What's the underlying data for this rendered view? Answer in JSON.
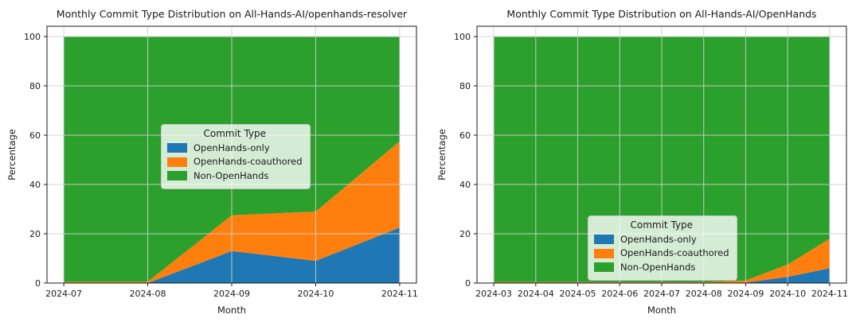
{
  "figure": {
    "background": "#ffffff",
    "text_color": "#1a1a1a",
    "grid_color": "#cfcfcf",
    "spine_color": "#1a1a1a"
  },
  "legend": {
    "title": "Commit Type"
  },
  "chart_data": [
    {
      "type": "area",
      "stacked": true,
      "title": "Monthly Commit Type Distribution on All-Hands-AI/openhands-resolver",
      "xlabel": "Month",
      "ylabel": "Percentage",
      "x": [
        "2024-07",
        "2024-08",
        "2024-09",
        "2024-10",
        "2024-11"
      ],
      "yticks": [
        0,
        20,
        40,
        60,
        80,
        100
      ],
      "ylim": [
        0,
        104
      ],
      "grid": true,
      "legend_position": "center",
      "series": [
        {
          "name": "OpenHands-only",
          "color": "#1f77b4",
          "values": [
            0,
            0,
            13,
            9,
            22.5
          ]
        },
        {
          "name": "OpenHands-coauthored",
          "color": "#ff7f0e",
          "values": [
            0.5,
            0.5,
            14.5,
            20,
            35
          ]
        },
        {
          "name": "Non-OpenHands",
          "color": "#2ca02c",
          "values": [
            99.5,
            99.5,
            72.5,
            71,
            42.5
          ]
        }
      ]
    },
    {
      "type": "area",
      "stacked": true,
      "title": "Monthly Commit Type Distribution on All-Hands-AI/OpenHands",
      "xlabel": "Month",
      "ylabel": "Percentage",
      "x": [
        "2024-03",
        "2024-04",
        "2024-05",
        "2024-06",
        "2024-07",
        "2024-08",
        "2024-09",
        "2024-10",
        "2024-11"
      ],
      "yticks": [
        0,
        20,
        40,
        60,
        80,
        100
      ],
      "ylim": [
        0,
        104
      ],
      "grid": true,
      "legend_position": "lower center",
      "series": [
        {
          "name": "OpenHands-only",
          "color": "#1f77b4",
          "values": [
            0,
            0,
            0,
            0,
            0,
            0,
            0.2,
            2.5,
            6
          ]
        },
        {
          "name": "OpenHands-coauthored",
          "color": "#ff7f0e",
          "values": [
            0.4,
            0.4,
            0.4,
            0.4,
            0.4,
            0.4,
            0.8,
            5,
            12
          ]
        },
        {
          "name": "Non-OpenHands",
          "color": "#2ca02c",
          "values": [
            99.6,
            99.6,
            99.6,
            99.6,
            99.6,
            99.6,
            99,
            92.5,
            82
          ]
        }
      ]
    }
  ]
}
